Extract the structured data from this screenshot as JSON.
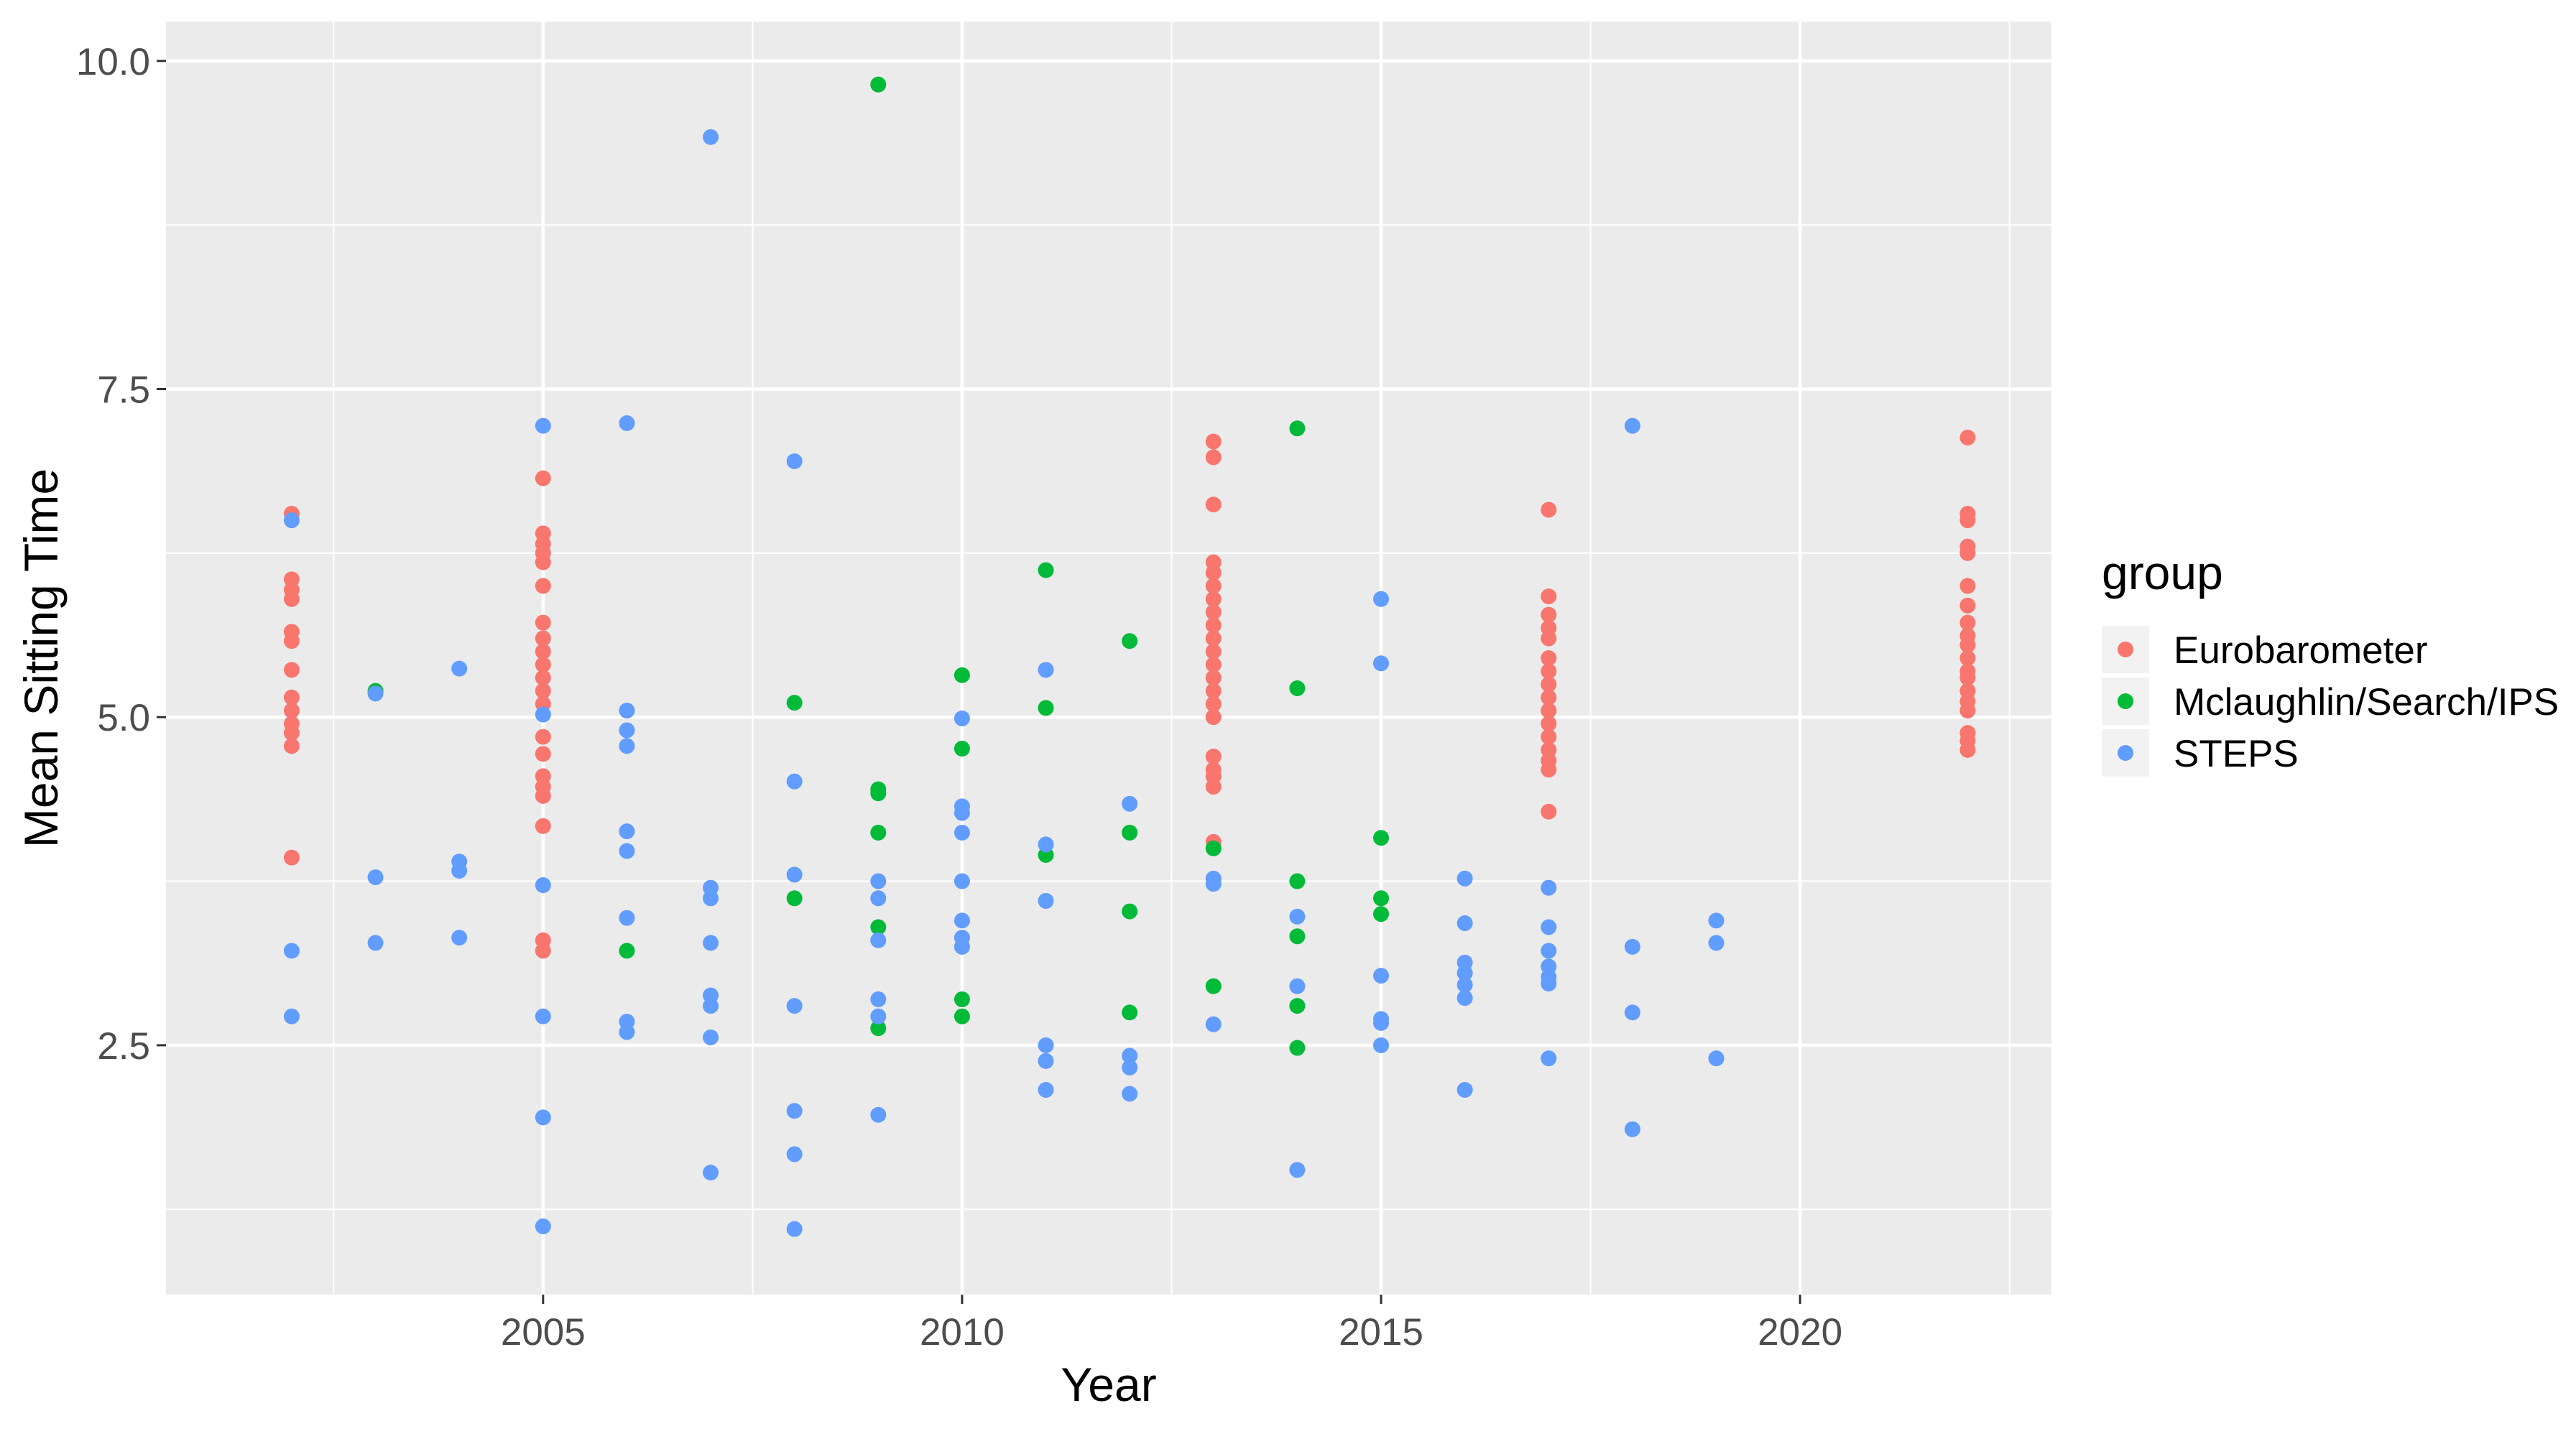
{
  "chart_data": {
    "type": "scatter",
    "title": "",
    "xlabel": "Year",
    "ylabel": "Mean Sitting Time",
    "xlim": [
      2000.5,
      2023.0
    ],
    "ylim": [
      0.6,
      10.3
    ],
    "x_ticks": [
      2005,
      2010,
      2015,
      2020
    ],
    "y_ticks": [
      2.5,
      5.0,
      7.5,
      10.0
    ],
    "y_tick_labels": [
      "2.5",
      "5.0",
      "7.5",
      "10.0"
    ],
    "grid": true,
    "panel_background": "#ebebeb",
    "legend": {
      "title": "group",
      "placement": "right"
    },
    "series": [
      {
        "name": "Eurobarometer",
        "color": "#f8766d",
        "points": [
          [
            2002,
            6.55
          ],
          [
            2002,
            6.05
          ],
          [
            2002,
            5.97
          ],
          [
            2002,
            5.9
          ],
          [
            2002,
            5.65
          ],
          [
            2002,
            5.58
          ],
          [
            2002,
            5.36
          ],
          [
            2002,
            5.15
          ],
          [
            2002,
            5.05
          ],
          [
            2002,
            4.95
          ],
          [
            2002,
            4.88
          ],
          [
            2002,
            4.78
          ],
          [
            2002,
            3.93
          ],
          [
            2005,
            6.82
          ],
          [
            2005,
            6.4
          ],
          [
            2005,
            6.32
          ],
          [
            2005,
            6.25
          ],
          [
            2005,
            6.18
          ],
          [
            2005,
            6.0
          ],
          [
            2005,
            5.72
          ],
          [
            2005,
            5.6
          ],
          [
            2005,
            5.5
          ],
          [
            2005,
            5.4
          ],
          [
            2005,
            5.3
          ],
          [
            2005,
            5.2
          ],
          [
            2005,
            5.1
          ],
          [
            2005,
            4.85
          ],
          [
            2005,
            4.72
          ],
          [
            2005,
            4.55
          ],
          [
            2005,
            4.47
          ],
          [
            2005,
            4.4
          ],
          [
            2005,
            4.17
          ],
          [
            2005,
            3.3
          ],
          [
            2005,
            3.22
          ],
          [
            2013,
            7.1
          ],
          [
            2013,
            6.98
          ],
          [
            2013,
            6.62
          ],
          [
            2013,
            6.18
          ],
          [
            2013,
            6.1
          ],
          [
            2013,
            6.0
          ],
          [
            2013,
            5.9
          ],
          [
            2013,
            5.8
          ],
          [
            2013,
            5.7
          ],
          [
            2013,
            5.6
          ],
          [
            2013,
            5.5
          ],
          [
            2013,
            5.4
          ],
          [
            2013,
            5.3
          ],
          [
            2013,
            5.2
          ],
          [
            2013,
            5.1
          ],
          [
            2013,
            5.0
          ],
          [
            2013,
            4.7
          ],
          [
            2013,
            4.6
          ],
          [
            2013,
            4.55
          ],
          [
            2013,
            4.47
          ],
          [
            2013,
            4.05
          ],
          [
            2017,
            6.58
          ],
          [
            2017,
            5.92
          ],
          [
            2017,
            5.78
          ],
          [
            2017,
            5.68
          ],
          [
            2017,
            5.6
          ],
          [
            2017,
            5.45
          ],
          [
            2017,
            5.35
          ],
          [
            2017,
            5.25
          ],
          [
            2017,
            5.15
          ],
          [
            2017,
            5.05
          ],
          [
            2017,
            4.95
          ],
          [
            2017,
            4.85
          ],
          [
            2017,
            4.75
          ],
          [
            2017,
            4.67
          ],
          [
            2017,
            4.6
          ],
          [
            2017,
            4.28
          ],
          [
            2022,
            7.13
          ],
          [
            2022,
            6.55
          ],
          [
            2022,
            6.5
          ],
          [
            2022,
            6.3
          ],
          [
            2022,
            6.25
          ],
          [
            2022,
            6.0
          ],
          [
            2022,
            5.85
          ],
          [
            2022,
            5.72
          ],
          [
            2022,
            5.62
          ],
          [
            2022,
            5.55
          ],
          [
            2022,
            5.45
          ],
          [
            2022,
            5.35
          ],
          [
            2022,
            5.3
          ],
          [
            2022,
            5.2
          ],
          [
            2022,
            5.12
          ],
          [
            2022,
            5.05
          ],
          [
            2022,
            4.88
          ],
          [
            2022,
            4.82
          ],
          [
            2022,
            4.75
          ]
        ]
      },
      {
        "name": "Mclaughlin/Search/IPS",
        "color": "#00ba38",
        "points": [
          [
            2003,
            5.2
          ],
          [
            2006,
            3.22
          ],
          [
            2008,
            5.11
          ],
          [
            2008,
            3.62
          ],
          [
            2009,
            9.82
          ],
          [
            2009,
            4.45
          ],
          [
            2009,
            4.42
          ],
          [
            2009,
            4.12
          ],
          [
            2009,
            3.4
          ],
          [
            2009,
            2.63
          ],
          [
            2010,
            5.32
          ],
          [
            2010,
            4.76
          ],
          [
            2010,
            2.85
          ],
          [
            2010,
            2.72
          ],
          [
            2011,
            6.12
          ],
          [
            2011,
            5.07
          ],
          [
            2011,
            3.95
          ],
          [
            2012,
            5.58
          ],
          [
            2012,
            4.12
          ],
          [
            2012,
            3.52
          ],
          [
            2012,
            2.75
          ],
          [
            2013,
            4.0
          ],
          [
            2013,
            2.95
          ],
          [
            2014,
            7.2
          ],
          [
            2014,
            5.22
          ],
          [
            2014,
            3.75
          ],
          [
            2014,
            3.33
          ],
          [
            2014,
            2.8
          ],
          [
            2014,
            2.48
          ],
          [
            2015,
            4.08
          ],
          [
            2015,
            3.62
          ],
          [
            2015,
            3.5
          ]
        ]
      },
      {
        "name": "STEPS",
        "color": "#619cff",
        "points": [
          [
            2002,
            6.5
          ],
          [
            2002,
            3.22
          ],
          [
            2002,
            2.72
          ],
          [
            2003,
            5.18
          ],
          [
            2003,
            3.78
          ],
          [
            2003,
            3.28
          ],
          [
            2004,
            5.37
          ],
          [
            2004,
            3.9
          ],
          [
            2004,
            3.83
          ],
          [
            2004,
            3.32
          ],
          [
            2005,
            7.22
          ],
          [
            2005,
            5.02
          ],
          [
            2005,
            3.72
          ],
          [
            2005,
            2.72
          ],
          [
            2005,
            1.95
          ],
          [
            2005,
            1.12
          ],
          [
            2006,
            7.24
          ],
          [
            2006,
            5.05
          ],
          [
            2006,
            4.9
          ],
          [
            2006,
            4.78
          ],
          [
            2006,
            4.13
          ],
          [
            2006,
            3.98
          ],
          [
            2006,
            3.47
          ],
          [
            2006,
            2.68
          ],
          [
            2006,
            2.6
          ],
          [
            2007,
            9.42
          ],
          [
            2007,
            3.7
          ],
          [
            2007,
            3.62
          ],
          [
            2007,
            3.28
          ],
          [
            2007,
            2.88
          ],
          [
            2007,
            2.8
          ],
          [
            2007,
            2.56
          ],
          [
            2007,
            1.53
          ],
          [
            2008,
            6.95
          ],
          [
            2008,
            4.51
          ],
          [
            2008,
            3.8
          ],
          [
            2008,
            2.8
          ],
          [
            2008,
            2.0
          ],
          [
            2008,
            1.67
          ],
          [
            2008,
            1.1
          ],
          [
            2009,
            3.75
          ],
          [
            2009,
            3.62
          ],
          [
            2009,
            3.3
          ],
          [
            2009,
            2.85
          ],
          [
            2009,
            2.72
          ],
          [
            2009,
            1.97
          ],
          [
            2010,
            4.99
          ],
          [
            2010,
            4.32
          ],
          [
            2010,
            4.27
          ],
          [
            2010,
            4.12
          ],
          [
            2010,
            3.75
          ],
          [
            2010,
            3.45
          ],
          [
            2010,
            3.32
          ],
          [
            2010,
            3.25
          ],
          [
            2011,
            5.36
          ],
          [
            2011,
            4.03
          ],
          [
            2011,
            3.6
          ],
          [
            2011,
            2.5
          ],
          [
            2011,
            2.38
          ],
          [
            2011,
            2.16
          ],
          [
            2012,
            4.34
          ],
          [
            2012,
            2.42
          ],
          [
            2012,
            2.33
          ],
          [
            2012,
            2.13
          ],
          [
            2013,
            3.77
          ],
          [
            2013,
            3.73
          ],
          [
            2013,
            2.66
          ],
          [
            2014,
            3.48
          ],
          [
            2014,
            2.95
          ],
          [
            2014,
            1.55
          ],
          [
            2015,
            5.9
          ],
          [
            2015,
            5.41
          ],
          [
            2015,
            3.03
          ],
          [
            2015,
            2.7
          ],
          [
            2015,
            2.67
          ],
          [
            2015,
            2.5
          ],
          [
            2016,
            3.77
          ],
          [
            2016,
            3.43
          ],
          [
            2016,
            3.13
          ],
          [
            2016,
            3.05
          ],
          [
            2016,
            2.96
          ],
          [
            2016,
            2.86
          ],
          [
            2016,
            2.16
          ],
          [
            2017,
            3.7
          ],
          [
            2017,
            3.4
          ],
          [
            2017,
            3.22
          ],
          [
            2017,
            3.1
          ],
          [
            2017,
            3.02
          ],
          [
            2017,
            2.97
          ],
          [
            2017,
            2.4
          ],
          [
            2018,
            7.22
          ],
          [
            2018,
            3.25
          ],
          [
            2018,
            2.75
          ],
          [
            2018,
            1.86
          ],
          [
            2019,
            3.45
          ],
          [
            2019,
            3.28
          ],
          [
            2019,
            2.4
          ]
        ]
      }
    ]
  }
}
